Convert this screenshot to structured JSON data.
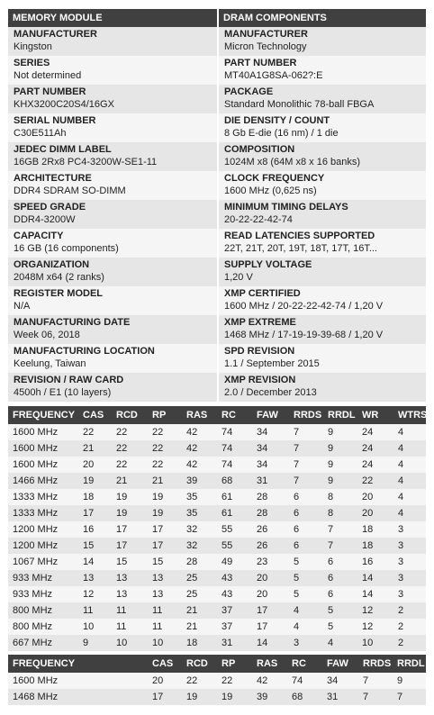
{
  "memory_module": {
    "header": "MEMORY MODULE",
    "fields": [
      {
        "label": "MANUFACTURER",
        "value": "Kingston"
      },
      {
        "label": "SERIES",
        "value": "Not determined"
      },
      {
        "label": "PART NUMBER",
        "value": "KHX3200C20S4/16GX"
      },
      {
        "label": "SERIAL NUMBER",
        "value": "C30E511Ah"
      },
      {
        "label": "JEDEC DIMM LABEL",
        "value": "16GB 2Rx8 PC4-3200W-SE1-11"
      },
      {
        "label": "ARCHITECTURE",
        "value": "DDR4 SDRAM SO-DIMM"
      },
      {
        "label": "SPEED GRADE",
        "value": "DDR4-3200W"
      },
      {
        "label": "CAPACITY",
        "value": "16 GB (16 components)"
      },
      {
        "label": "ORGANIZATION",
        "value": "2048M x64 (2 ranks)"
      },
      {
        "label": "REGISTER MODEL",
        "value": "N/A"
      },
      {
        "label": "MANUFACTURING DATE",
        "value": "Week 06, 2018"
      },
      {
        "label": "MANUFACTURING LOCATION",
        "value": "Keelung, Taiwan"
      },
      {
        "label": "REVISION / RAW CARD",
        "value": "4500h / E1 (10 layers)"
      }
    ]
  },
  "dram_components": {
    "header": "DRAM COMPONENTS",
    "fields": [
      {
        "label": "MANUFACTURER",
        "value": "Micron Technology"
      },
      {
        "label": "PART NUMBER",
        "value": "MT40A1G8SA-062?:E"
      },
      {
        "label": "PACKAGE",
        "value": "Standard Monolithic 78-ball FBGA"
      },
      {
        "label": "DIE DENSITY / COUNT",
        "value": "8 Gb E-die (16 nm) / 1 die"
      },
      {
        "label": "COMPOSITION",
        "value": "1024M x8 (64M x8 x 16 banks)"
      },
      {
        "label": "CLOCK FREQUENCY",
        "value": "1600 MHz (0,625 ns)"
      },
      {
        "label": "MINIMUM TIMING DELAYS",
        "value": "20-22-22-42-74"
      },
      {
        "label": "READ LATENCIES SUPPORTED",
        "value": "22T, 21T, 20T, 19T, 18T, 17T, 16T..."
      },
      {
        "label": "SUPPLY VOLTAGE",
        "value": "1,20 V"
      },
      {
        "label": "XMP CERTIFIED",
        "value": "1600 MHz / 20-22-22-42-74 / 1,20 V"
      },
      {
        "label": "XMP EXTREME",
        "value": "1468 MHz / 17-19-19-39-68 / 1,20 V"
      },
      {
        "label": "SPD REVISION",
        "value": "1.1 / September 2015"
      },
      {
        "label": "XMP REVISION",
        "value": "2.0 / December 2013"
      }
    ]
  },
  "timings": {
    "columns": [
      "FREQUENCY",
      "CAS",
      "RCD",
      "RP",
      "RAS",
      "RC",
      "FAW",
      "RRDS",
      "RRDL",
      "WR",
      "WTRS"
    ],
    "rows": [
      [
        "1600 MHz",
        "22",
        "22",
        "22",
        "42",
        "74",
        "34",
        "7",
        "9",
        "24",
        "4"
      ],
      [
        "1600 MHz",
        "21",
        "22",
        "22",
        "42",
        "74",
        "34",
        "7",
        "9",
        "24",
        "4"
      ],
      [
        "1600 MHz",
        "20",
        "22",
        "22",
        "42",
        "74",
        "34",
        "7",
        "9",
        "24",
        "4"
      ],
      [
        "1466 MHz",
        "19",
        "21",
        "21",
        "39",
        "68",
        "31",
        "7",
        "9",
        "22",
        "4"
      ],
      [
        "1333 MHz",
        "18",
        "19",
        "19",
        "35",
        "61",
        "28",
        "6",
        "8",
        "20",
        "4"
      ],
      [
        "1333 MHz",
        "17",
        "19",
        "19",
        "35",
        "61",
        "28",
        "6",
        "8",
        "20",
        "4"
      ],
      [
        "1200 MHz",
        "16",
        "17",
        "17",
        "32",
        "55",
        "26",
        "6",
        "7",
        "18",
        "3"
      ],
      [
        "1200 MHz",
        "15",
        "17",
        "17",
        "32",
        "55",
        "26",
        "6",
        "7",
        "18",
        "3"
      ],
      [
        "1067 MHz",
        "14",
        "15",
        "15",
        "28",
        "49",
        "23",
        "5",
        "6",
        "16",
        "3"
      ],
      [
        "933 MHz",
        "13",
        "13",
        "13",
        "25",
        "43",
        "20",
        "5",
        "6",
        "14",
        "3"
      ],
      [
        "933 MHz",
        "12",
        "13",
        "13",
        "25",
        "43",
        "20",
        "5",
        "6",
        "14",
        "3"
      ],
      [
        "800 MHz",
        "11",
        "11",
        "11",
        "21",
        "37",
        "17",
        "4",
        "5",
        "12",
        "2"
      ],
      [
        "800 MHz",
        "10",
        "11",
        "11",
        "21",
        "37",
        "17",
        "4",
        "5",
        "12",
        "2"
      ],
      [
        "667 MHz",
        "9",
        "10",
        "10",
        "18",
        "31",
        "14",
        "3",
        "4",
        "10",
        "2"
      ]
    ]
  },
  "xmp_timings": {
    "columns": [
      "FREQUENCY",
      "CAS",
      "RCD",
      "RP",
      "RAS",
      "RC",
      "FAW",
      "RRDS",
      "RRDL"
    ],
    "rows": [
      [
        "1600 MHz",
        "20",
        "22",
        "22",
        "42",
        "74",
        "34",
        "7",
        "9"
      ],
      [
        "1468 MHz",
        "17",
        "19",
        "19",
        "39",
        "68",
        "31",
        "7",
        "7"
      ]
    ]
  }
}
